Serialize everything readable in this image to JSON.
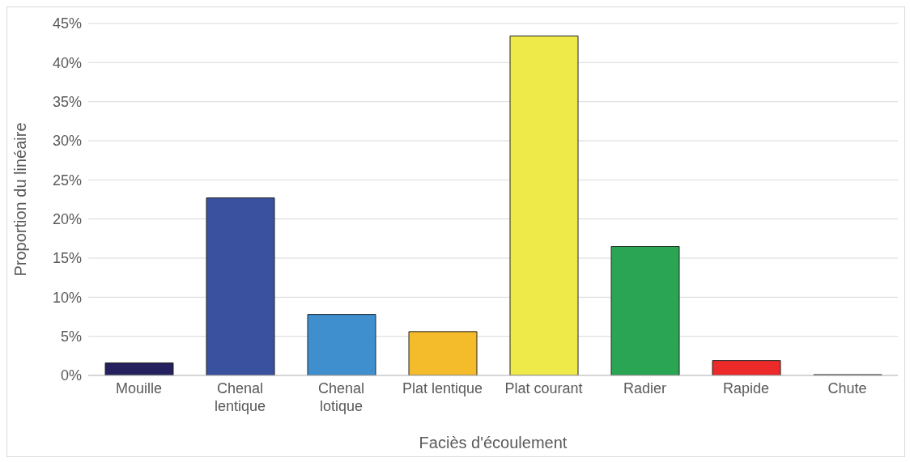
{
  "chart_data": {
    "type": "bar",
    "xlabel": "Faciès d'écoulement",
    "ylabel": "Proportion du linéaire",
    "categories": [
      "Mouille",
      "Chenal lentique",
      "Chenal lotique",
      "Plat lentique",
      "Plat courant",
      "Radier",
      "Rapide",
      "Chute"
    ],
    "values": [
      1.6,
      22.7,
      7.8,
      5.6,
      43.4,
      16.5,
      1.9,
      0.1
    ],
    "colors": [
      "#24215e",
      "#3a51a0",
      "#3f8fcf",
      "#f4bb2a",
      "#eeea4a",
      "#2aa554",
      "#ec2a2a",
      "#888888"
    ],
    "ylim": [
      0,
      45
    ],
    "yticks": [
      {
        "value": 0,
        "label": "0%"
      },
      {
        "value": 5,
        "label": "5%"
      },
      {
        "value": 10,
        "label": "10%"
      },
      {
        "value": 15,
        "label": "15%"
      },
      {
        "value": 20,
        "label": "20%"
      },
      {
        "value": 25,
        "label": "25%"
      },
      {
        "value": 30,
        "label": "30%"
      },
      {
        "value": 35,
        "label": "35%"
      },
      {
        "value": 40,
        "label": "40%"
      },
      {
        "value": 45,
        "label": "45%"
      }
    ],
    "grid": "y"
  }
}
